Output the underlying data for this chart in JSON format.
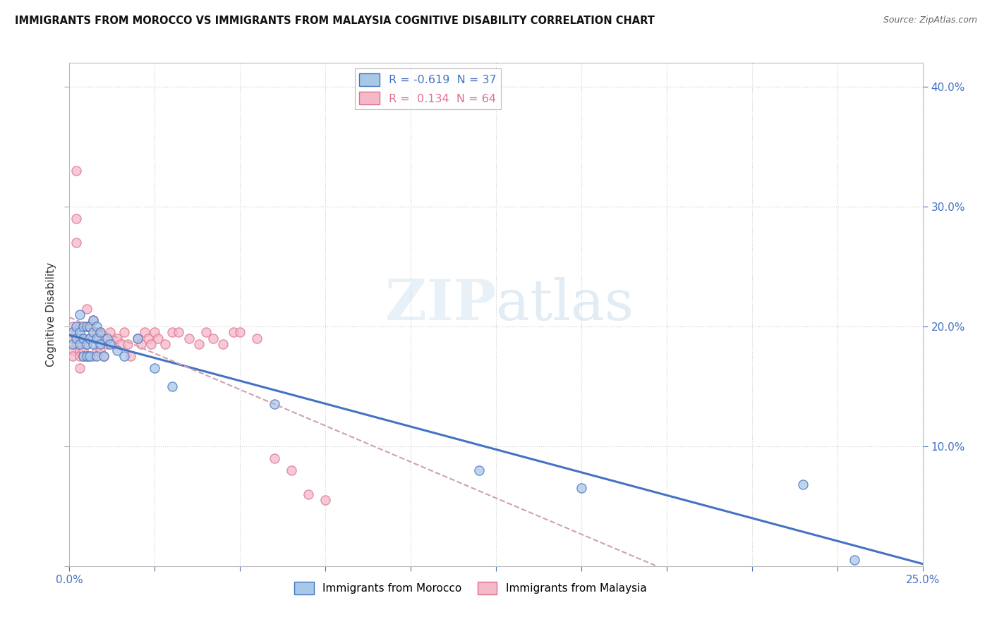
{
  "title": "IMMIGRANTS FROM MOROCCO VS IMMIGRANTS FROM MALAYSIA COGNITIVE DISABILITY CORRELATION CHART",
  "source": "Source: ZipAtlas.com",
  "ylabel": "Cognitive Disability",
  "ylabel_right_vals": [
    0.1,
    0.2,
    0.3,
    0.4
  ],
  "xlim": [
    0.0,
    0.25
  ],
  "ylim": [
    0.0,
    0.42
  ],
  "color_morocco": "#a8c8e8",
  "color_malaysia": "#f4b8c8",
  "color_line_morocco": "#4472c4",
  "color_line_malaysia": "#e07090",
  "color_trendline_malaysia": "#d0a0b0",
  "watermark_zip": "ZIP",
  "watermark_atlas": "atlas",
  "morocco_x": [
    0.001,
    0.001,
    0.002,
    0.002,
    0.003,
    0.003,
    0.003,
    0.004,
    0.004,
    0.004,
    0.005,
    0.005,
    0.005,
    0.006,
    0.006,
    0.006,
    0.007,
    0.007,
    0.007,
    0.008,
    0.008,
    0.008,
    0.009,
    0.009,
    0.01,
    0.011,
    0.012,
    0.014,
    0.016,
    0.02,
    0.025,
    0.03,
    0.06,
    0.12,
    0.15,
    0.215,
    0.23
  ],
  "morocco_y": [
    0.195,
    0.185,
    0.2,
    0.19,
    0.21,
    0.195,
    0.185,
    0.2,
    0.19,
    0.175,
    0.2,
    0.185,
    0.175,
    0.2,
    0.19,
    0.175,
    0.205,
    0.195,
    0.185,
    0.2,
    0.19,
    0.175,
    0.195,
    0.185,
    0.175,
    0.19,
    0.185,
    0.18,
    0.175,
    0.19,
    0.165,
    0.15,
    0.135,
    0.08,
    0.065,
    0.068,
    0.005
  ],
  "malaysia_x": [
    0.001,
    0.001,
    0.001,
    0.001,
    0.002,
    0.002,
    0.002,
    0.002,
    0.002,
    0.003,
    0.003,
    0.003,
    0.003,
    0.003,
    0.004,
    0.004,
    0.004,
    0.004,
    0.005,
    0.005,
    0.005,
    0.005,
    0.006,
    0.006,
    0.006,
    0.007,
    0.007,
    0.007,
    0.008,
    0.008,
    0.009,
    0.009,
    0.01,
    0.01,
    0.011,
    0.012,
    0.013,
    0.014,
    0.015,
    0.016,
    0.017,
    0.018,
    0.02,
    0.021,
    0.022,
    0.023,
    0.024,
    0.025,
    0.026,
    0.028,
    0.03,
    0.032,
    0.035,
    0.038,
    0.04,
    0.042,
    0.045,
    0.048,
    0.05,
    0.055,
    0.06,
    0.065,
    0.07,
    0.075
  ],
  "malaysia_y": [
    0.2,
    0.19,
    0.18,
    0.175,
    0.33,
    0.29,
    0.27,
    0.195,
    0.185,
    0.2,
    0.19,
    0.18,
    0.175,
    0.165,
    0.2,
    0.19,
    0.18,
    0.175,
    0.215,
    0.2,
    0.185,
    0.175,
    0.2,
    0.19,
    0.175,
    0.205,
    0.19,
    0.175,
    0.195,
    0.18,
    0.195,
    0.18,
    0.19,
    0.175,
    0.185,
    0.195,
    0.185,
    0.19,
    0.185,
    0.195,
    0.185,
    0.175,
    0.19,
    0.185,
    0.195,
    0.19,
    0.185,
    0.195,
    0.19,
    0.185,
    0.195,
    0.195,
    0.19,
    0.185,
    0.195,
    0.19,
    0.185,
    0.195,
    0.195,
    0.19,
    0.09,
    0.08,
    0.06,
    0.055
  ]
}
